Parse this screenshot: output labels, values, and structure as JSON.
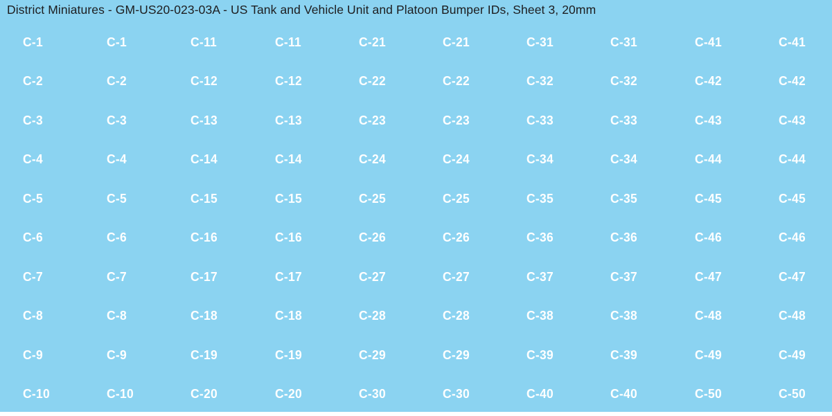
{
  "title": "District Miniatures - GM-US20-023-03A - US Tank and Vehicle Unit and Platoon Bumper IDs, Sheet 3, 20mm",
  "colors": {
    "page_bg": "#ffffff",
    "sheet_bg": "#8bd3f1",
    "title_text": "#1d1d1f",
    "label_text": "#ffffff"
  },
  "grid": {
    "rows": 10,
    "columns": 10,
    "labels": [
      [
        "C-1",
        "C-1",
        "C-11",
        "C-11",
        "C-21",
        "C-21",
        "C-31",
        "C-31",
        "C-41",
        "C-41"
      ],
      [
        "C-2",
        "C-2",
        "C-12",
        "C-12",
        "C-22",
        "C-22",
        "C-32",
        "C-32",
        "C-42",
        "C-42"
      ],
      [
        "C-3",
        "C-3",
        "C-13",
        "C-13",
        "C-23",
        "C-23",
        "C-33",
        "C-33",
        "C-43",
        "C-43"
      ],
      [
        "C-4",
        "C-4",
        "C-14",
        "C-14",
        "C-24",
        "C-24",
        "C-34",
        "C-34",
        "C-44",
        "C-44"
      ],
      [
        "C-5",
        "C-5",
        "C-15",
        "C-15",
        "C-25",
        "C-25",
        "C-35",
        "C-35",
        "C-45",
        "C-45"
      ],
      [
        "C-6",
        "C-6",
        "C-16",
        "C-16",
        "C-26",
        "C-26",
        "C-36",
        "C-36",
        "C-46",
        "C-46"
      ],
      [
        "C-7",
        "C-7",
        "C-17",
        "C-17",
        "C-27",
        "C-27",
        "C-37",
        "C-37",
        "C-47",
        "C-47"
      ],
      [
        "C-8",
        "C-8",
        "C-18",
        "C-18",
        "C-28",
        "C-28",
        "C-38",
        "C-38",
        "C-48",
        "C-48"
      ],
      [
        "C-9",
        "C-9",
        "C-19",
        "C-19",
        "C-29",
        "C-29",
        "C-39",
        "C-39",
        "C-49",
        "C-49"
      ],
      [
        "C-10",
        "C-10",
        "C-20",
        "C-20",
        "C-30",
        "C-30",
        "C-40",
        "C-40",
        "C-50",
        "C-50"
      ]
    ]
  }
}
